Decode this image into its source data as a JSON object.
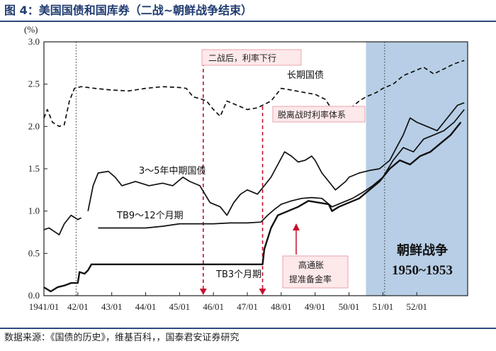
{
  "title": "图 4：美国国债和国库券（二战~朝鲜战争结束）",
  "source": "数据来源：《国债的历史》，维基百科，，国泰君安证券研究",
  "chart_data": {
    "type": "line",
    "y_unit_label": "(%)",
    "ylim": [
      0.0,
      3.0
    ],
    "yticks": [
      "0.0",
      "0.5",
      "1.0",
      "1.5",
      "2.0",
      "2.5",
      "3.0"
    ],
    "xlim": [
      1941.0,
      1953.5
    ],
    "xtick_labels": [
      "1941/01",
      "42/01",
      "43/01",
      "44/01",
      "45/01",
      "46/01",
      "47/01",
      "48/01",
      "49/01",
      "50/01",
      "51/01",
      "52/01"
    ],
    "series": [
      {
        "name": "长期国债",
        "style": "dashed",
        "points": [
          [
            1941.0,
            2.1
          ],
          [
            1941.1,
            2.2
          ],
          [
            1941.25,
            2.05
          ],
          [
            1941.45,
            2.0
          ],
          [
            1941.6,
            2.02
          ],
          [
            1941.75,
            2.3
          ],
          [
            1941.9,
            2.45
          ],
          [
            1942.1,
            2.47
          ],
          [
            1942.3,
            2.46
          ],
          [
            1942.5,
            2.45
          ],
          [
            1943.0,
            2.43
          ],
          [
            1943.5,
            2.42
          ],
          [
            1944.0,
            2.45
          ],
          [
            1944.5,
            2.47
          ],
          [
            1945.0,
            2.46
          ],
          [
            1945.2,
            2.45
          ],
          [
            1945.4,
            2.35
          ],
          [
            1945.6,
            2.33
          ],
          [
            1945.8,
            2.3
          ],
          [
            1946.0,
            2.2
          ],
          [
            1946.2,
            2.12
          ],
          [
            1946.4,
            2.3
          ],
          [
            1946.7,
            2.25
          ],
          [
            1947.0,
            2.2
          ],
          [
            1947.3,
            2.22
          ],
          [
            1947.7,
            2.3
          ],
          [
            1948.0,
            2.45
          ],
          [
            1948.3,
            2.43
          ],
          [
            1948.7,
            2.4
          ],
          [
            1949.0,
            2.38
          ],
          [
            1949.3,
            2.32
          ],
          [
            1949.5,
            2.2
          ],
          [
            1949.8,
            2.18
          ],
          [
            1950.0,
            2.2
          ],
          [
            1950.3,
            2.3
          ],
          [
            1950.5,
            2.35
          ],
          [
            1950.8,
            2.4
          ],
          [
            1951.0,
            2.45
          ],
          [
            1951.3,
            2.5
          ],
          [
            1951.6,
            2.6
          ],
          [
            1951.9,
            2.65
          ],
          [
            1952.2,
            2.7
          ],
          [
            1952.5,
            2.62
          ],
          [
            1952.8,
            2.68
          ],
          [
            1953.1,
            2.74
          ],
          [
            1953.4,
            2.78
          ]
        ]
      },
      {
        "name": "3～5年中期国债",
        "style": "solid",
        "points": [
          [
            1942.3,
            1.0
          ],
          [
            1942.45,
            1.3
          ],
          [
            1942.6,
            1.45
          ],
          [
            1942.9,
            1.47
          ],
          [
            1943.1,
            1.4
          ],
          [
            1943.3,
            1.3
          ],
          [
            1943.7,
            1.35
          ],
          [
            1944.1,
            1.3
          ],
          [
            1944.5,
            1.33
          ],
          [
            1944.8,
            1.3
          ],
          [
            1945.1,
            1.4
          ],
          [
            1945.3,
            1.35
          ],
          [
            1945.6,
            1.3
          ],
          [
            1945.9,
            1.1
          ],
          [
            1946.2,
            1.05
          ],
          [
            1946.4,
            0.95
          ],
          [
            1946.6,
            1.1
          ],
          [
            1946.8,
            1.2
          ],
          [
            1947.0,
            1.25
          ],
          [
            1947.3,
            1.2
          ],
          [
            1947.5,
            1.3
          ],
          [
            1947.7,
            1.4
          ],
          [
            1947.9,
            1.55
          ],
          [
            1948.1,
            1.7
          ],
          [
            1948.3,
            1.65
          ],
          [
            1948.5,
            1.58
          ],
          [
            1948.7,
            1.6
          ],
          [
            1948.9,
            1.65
          ],
          [
            1949.0,
            1.6
          ],
          [
            1949.2,
            1.45
          ],
          [
            1949.4,
            1.35
          ],
          [
            1949.6,
            1.25
          ],
          [
            1949.9,
            1.35
          ],
          [
            1950.0,
            1.4
          ],
          [
            1950.3,
            1.45
          ],
          [
            1950.6,
            1.48
          ],
          [
            1950.9,
            1.5
          ],
          [
            1951.2,
            1.6
          ],
          [
            1951.4,
            1.75
          ],
          [
            1951.6,
            1.9
          ],
          [
            1951.8,
            2.1
          ],
          [
            1952.0,
            2.05
          ],
          [
            1952.3,
            2.0
          ],
          [
            1952.6,
            1.95
          ],
          [
            1952.9,
            2.1
          ],
          [
            1953.2,
            2.25
          ],
          [
            1953.4,
            2.28
          ]
        ]
      },
      {
        "name": "TB9～12个月期",
        "style": "solid",
        "points": [
          [
            1941.0,
            0.78
          ],
          [
            1941.15,
            0.8
          ],
          [
            1941.3,
            0.76
          ],
          [
            1941.45,
            0.72
          ],
          [
            1941.6,
            0.85
          ],
          [
            1941.8,
            0.95
          ],
          [
            1942.0,
            0.9
          ],
          [
            1942.1,
            0.92
          ]
        ]
      },
      {
        "name": "TB9～12个月期",
        "style": "solid",
        "points": [
          [
            1942.6,
            0.8
          ],
          [
            1943.0,
            0.8
          ],
          [
            1943.5,
            0.8
          ],
          [
            1944.0,
            0.8
          ],
          [
            1944.5,
            0.82
          ],
          [
            1945.0,
            0.85
          ],
          [
            1945.5,
            0.85
          ],
          [
            1946.0,
            0.85
          ],
          [
            1946.5,
            0.86
          ],
          [
            1947.0,
            0.86
          ],
          [
            1947.4,
            0.87
          ],
          [
            1947.6,
            0.95
          ],
          [
            1947.8,
            1.02
          ],
          [
            1948.0,
            1.08
          ],
          [
            1948.3,
            1.12
          ],
          [
            1948.6,
            1.15
          ],
          [
            1948.9,
            1.16
          ],
          [
            1949.2,
            1.15
          ],
          [
            1949.5,
            1.05
          ],
          [
            1949.8,
            1.1
          ],
          [
            1950.1,
            1.15
          ],
          [
            1950.4,
            1.22
          ],
          [
            1950.7,
            1.3
          ],
          [
            1951.0,
            1.4
          ],
          [
            1951.3,
            1.6
          ],
          [
            1951.6,
            1.75
          ],
          [
            1951.9,
            1.7
          ],
          [
            1952.2,
            1.85
          ],
          [
            1952.5,
            1.9
          ],
          [
            1952.8,
            1.95
          ],
          [
            1953.1,
            2.05
          ],
          [
            1953.4,
            2.2
          ]
        ]
      },
      {
        "name": "TB3个月期",
        "style": "solid",
        "points": [
          [
            1941.0,
            0.1
          ],
          [
            1941.2,
            0.05
          ],
          [
            1941.4,
            0.1
          ],
          [
            1941.6,
            0.12
          ],
          [
            1941.8,
            0.15
          ],
          [
            1942.0,
            0.15
          ],
          [
            1942.05,
            0.28
          ],
          [
            1942.2,
            0.26
          ],
          [
            1942.3,
            0.3
          ],
          [
            1942.4,
            0.37
          ],
          [
            1943.0,
            0.37
          ],
          [
            1944.0,
            0.37
          ],
          [
            1945.0,
            0.37
          ],
          [
            1946.0,
            0.37
          ],
          [
            1947.0,
            0.37
          ],
          [
            1947.45,
            0.37
          ],
          [
            1947.5,
            0.55
          ],
          [
            1947.7,
            0.8
          ],
          [
            1947.9,
            0.95
          ],
          [
            1948.2,
            1.0
          ],
          [
            1948.5,
            1.05
          ],
          [
            1948.8,
            1.12
          ],
          [
            1949.1,
            1.1
          ],
          [
            1949.4,
            1.08
          ],
          [
            1949.5,
            1.0
          ],
          [
            1949.7,
            1.05
          ],
          [
            1950.0,
            1.1
          ],
          [
            1950.3,
            1.15
          ],
          [
            1950.6,
            1.25
          ],
          [
            1950.9,
            1.35
          ],
          [
            1951.2,
            1.5
          ],
          [
            1951.5,
            1.6
          ],
          [
            1951.8,
            1.55
          ],
          [
            1952.1,
            1.65
          ],
          [
            1952.4,
            1.7
          ],
          [
            1952.7,
            1.8
          ],
          [
            1953.0,
            1.9
          ],
          [
            1953.3,
            2.05
          ]
        ]
      }
    ],
    "series_labels": [
      "长期国债",
      "3～5年中期国债",
      "TB9～12个月期",
      "TB3个月期"
    ],
    "annotations": {
      "war_end_text": "二战后，利率下行",
      "fed_accord_text": "脱离战时利率体系",
      "inflation_text_1": "高通胀",
      "inflation_text_2": "提准备金率",
      "korea_war_text_1": "朝鲜战争",
      "korea_war_text_2": "1950~1953"
    },
    "shaded_region": [
      1950.5,
      1953.5
    ],
    "vertical_markers": [
      1941.95,
      1945.7,
      1947.45,
      1951.05
    ],
    "colors": {
      "line": "#111111",
      "red_arrow": "#c8102e",
      "shade": "#b7cee6",
      "box_fill": "#fde8ea",
      "box_border": "#e9a4ad",
      "title": "#1f3b70",
      "rule": "#2c4a7e",
      "korea_text": "#111111"
    }
  }
}
